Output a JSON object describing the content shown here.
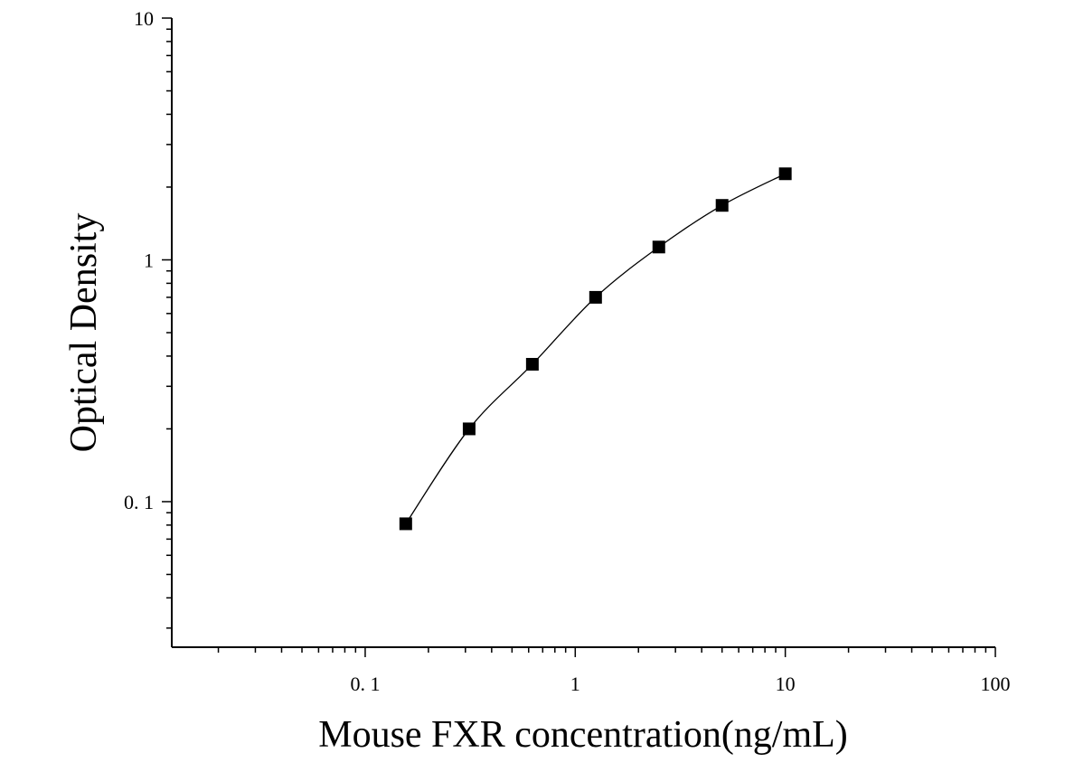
{
  "chart_data": {
    "type": "scatter",
    "xlabel": "Mouse FXR concentration(ng/mL)",
    "ylabel": "Optical Density",
    "x_scale": "log",
    "y_scale": "log",
    "xlim": [
      0.012,
      100
    ],
    "ylim": [
      0.025,
      10
    ],
    "x_ticks": [
      {
        "value": 0.1,
        "label": "0. 1"
      },
      {
        "value": 1,
        "label": "1"
      },
      {
        "value": 10,
        "label": "10"
      },
      {
        "value": 100,
        "label": "100"
      }
    ],
    "y_ticks": [
      {
        "value": 0.1,
        "label": "0. 1"
      },
      {
        "value": 1,
        "label": "1"
      },
      {
        "value": 10,
        "label": "10"
      }
    ],
    "grid": false,
    "series": [
      {
        "marker": "square",
        "color": "#000000",
        "points": [
          {
            "x": 0.156,
            "y": 0.081
          },
          {
            "x": 0.3125,
            "y": 0.2
          },
          {
            "x": 0.625,
            "y": 0.37
          },
          {
            "x": 1.25,
            "y": 0.7
          },
          {
            "x": 2.5,
            "y": 1.13
          },
          {
            "x": 5,
            "y": 1.68
          },
          {
            "x": 10,
            "y": 2.27
          }
        ],
        "fit_line": true
      }
    ]
  }
}
